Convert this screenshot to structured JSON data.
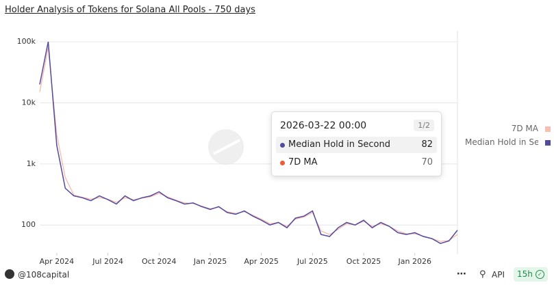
{
  "chart_data": {
    "type": "line",
    "title": "Holder Analysis of Tokens for Solana All Pools - 750 days",
    "x": [
      "2024-03",
      "2024-03",
      "2024-04",
      "2024-04",
      "2024-05",
      "2024-05",
      "2024-06",
      "2024-06",
      "2024-07",
      "2024-07",
      "2024-08",
      "2024-08",
      "2024-09",
      "2024-09",
      "2024-10",
      "2024-10",
      "2024-11",
      "2024-11",
      "2024-12",
      "2024-12",
      "2025-01",
      "2025-01",
      "2025-02",
      "2025-02",
      "2025-03",
      "2025-03",
      "2025-04",
      "2025-04",
      "2025-05",
      "2025-05",
      "2025-06",
      "2025-06",
      "2025-07",
      "2025-07",
      "2025-08",
      "2025-08",
      "2025-09",
      "2025-09",
      "2025-10",
      "2025-10",
      "2025-11",
      "2025-11",
      "2025-12",
      "2025-12",
      "2026-01",
      "2026-01",
      "2026-02",
      "2026-02",
      "2026-03",
      "2026-03"
    ],
    "series": [
      {
        "name": "Median Hold in Second",
        "color": "#514a9d",
        "values": [
          20000,
          100000,
          2000,
          400,
          300,
          280,
          250,
          300,
          260,
          220,
          300,
          250,
          280,
          300,
          350,
          280,
          250,
          220,
          230,
          200,
          180,
          200,
          160,
          150,
          170,
          140,
          120,
          100,
          110,
          90,
          130,
          140,
          170,
          70,
          65,
          90,
          110,
          100,
          120,
          90,
          110,
          95,
          75,
          70,
          75,
          65,
          60,
          50,
          55,
          82
        ]
      },
      {
        "name": "7D MA",
        "color": "#ee5c3a",
        "values": [
          15000,
          80000,
          3000,
          600,
          310,
          285,
          265,
          280,
          265,
          235,
          280,
          260,
          275,
          290,
          330,
          290,
          255,
          230,
          225,
          205,
          185,
          195,
          165,
          155,
          165,
          145,
          125,
          105,
          110,
          95,
          125,
          135,
          160,
          80,
          70,
          85,
          105,
          100,
          115,
          95,
          105,
          95,
          80,
          72,
          72,
          66,
          60,
          54,
          56,
          70
        ]
      }
    ],
    "ylim": [
      35,
      140000
    ],
    "log_scale": true,
    "yticks": [
      100,
      {
        "value": 1000,
        "label": "1k"
      },
      {
        "value": 10000,
        "label": "10k"
      },
      {
        "value": 100000,
        "label": "100k"
      }
    ],
    "xticks": [
      {
        "value": "2024-04",
        "label": "Apr 2024"
      },
      {
        "value": "2024-07",
        "label": "Jul 2024"
      },
      {
        "value": "2024-10",
        "label": "Oct 2024"
      },
      {
        "value": "2025-01",
        "label": "Jan 2025"
      },
      {
        "value": "2025-04",
        "label": "Apr 2025"
      },
      {
        "value": "2025-07",
        "label": "Jul 2025"
      },
      {
        "value": "2025-10",
        "label": "Oct 2025"
      },
      {
        "value": "2026-01",
        "label": "Jan 2026"
      }
    ],
    "grid": true,
    "legend": "right",
    "tooltip": {
      "title": "2026-03-22 00:00",
      "page": "1/2"
    }
  },
  "footer": {
    "user": "@108capital",
    "api": "API",
    "age": "15h"
  }
}
